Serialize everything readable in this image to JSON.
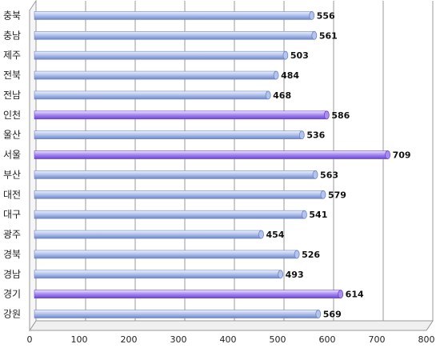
{
  "chart_data": {
    "type": "bar",
    "orientation": "horizontal",
    "categories": [
      "충북",
      "충남",
      "제주",
      "전북",
      "전남",
      "인천",
      "울산",
      "서울",
      "부산",
      "대전",
      "대구",
      "광주",
      "경북",
      "경남",
      "경기",
      "강원"
    ],
    "values": [
      556,
      561,
      503,
      484,
      468,
      586,
      536,
      709,
      563,
      579,
      541,
      454,
      526,
      493,
      614,
      569
    ],
    "highlighted": [
      "인천",
      "서울",
      "경기"
    ],
    "xlim": [
      0,
      800
    ],
    "xticks": [
      "0",
      "100",
      "200",
      "300",
      "400",
      "500",
      "600",
      "700",
      "800"
    ],
    "grid": true,
    "data_labels": true,
    "colors": {
      "bar": "#b4c4ec",
      "bar_dark": "#6f86c6",
      "bar_highlight": "#a98ef0",
      "bar_highlight_dark": "#6a46d8"
    }
  }
}
